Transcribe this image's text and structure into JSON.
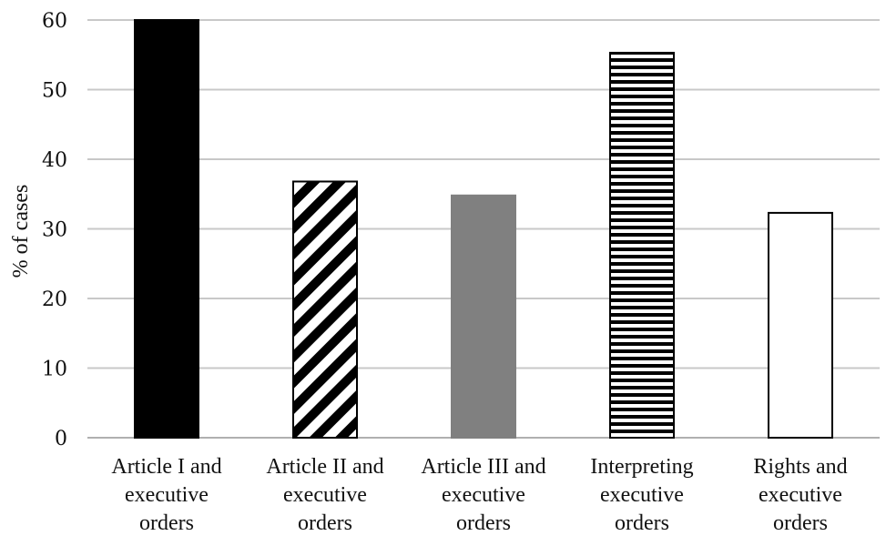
{
  "chart_data": {
    "type": "bar",
    "ylabel": "% of cases",
    "ylim": [
      0,
      60
    ],
    "yticks": [
      0,
      10,
      20,
      30,
      40,
      50,
      60
    ],
    "grid": true,
    "legend": "none",
    "categories": [
      [
        "Article I and",
        "executive",
        "orders"
      ],
      [
        "Article II and",
        "executive",
        "orders"
      ],
      [
        "Article III and",
        "executive",
        "orders"
      ],
      [
        "Interpreting",
        "executive",
        "orders"
      ],
      [
        "Rights and",
        "executive",
        "orders"
      ]
    ],
    "values": [
      60,
      36.8,
      34.8,
      55.3,
      32.3
    ],
    "fills": [
      "solid-black",
      "diagonal-stripes",
      "solid-gray",
      "horizontal-stripes",
      "white"
    ],
    "colors": {
      "black": "#000000",
      "gray": "#808080",
      "white": "#ffffff"
    }
  }
}
